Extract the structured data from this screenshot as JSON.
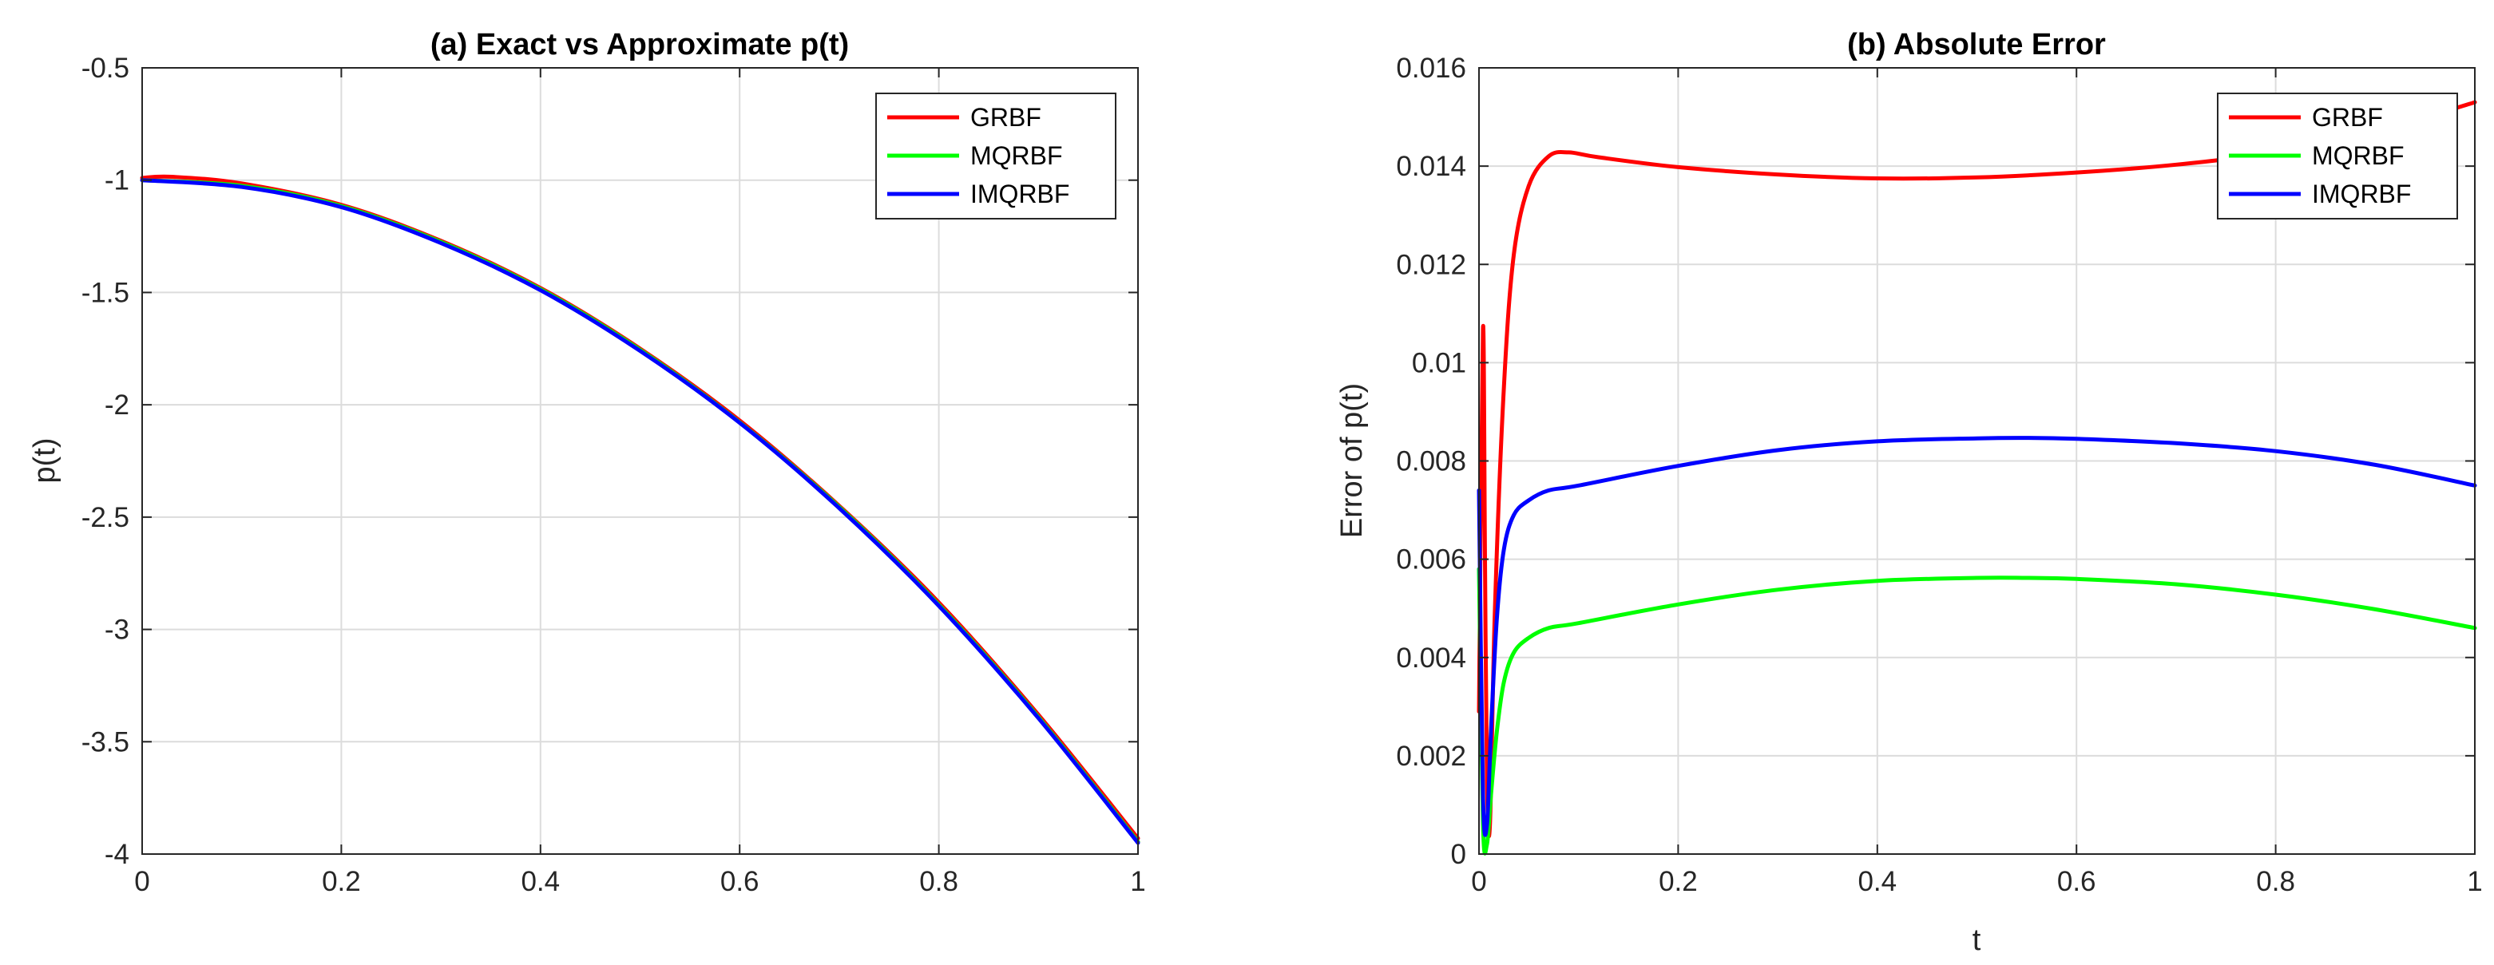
{
  "chart_data": [
    {
      "type": "line",
      "title": "(a) Exact vs Approximate p(t)",
      "xlabel": "",
      "ylabel": "p(t)",
      "xlim": [
        0,
        1
      ],
      "ylim": [
        -4,
        -0.5
      ],
      "xticks": [
        0,
        0.2,
        0.4,
        0.6,
        0.8,
        1
      ],
      "xtick_labels": [
        "0",
        "0.2",
        "0.4",
        "0.6",
        "0.8",
        "1"
      ],
      "yticks": [
        -4,
        -3.5,
        -3,
        -2.5,
        -2,
        -1.5,
        -1,
        -0.5
      ],
      "ytick_labels": [
        "-4",
        "-3.5",
        "-3",
        "-2.5",
        "-2",
        "-1.5",
        "-1",
        "-0.5"
      ],
      "grid": true,
      "legend_position": "top-right",
      "series": [
        {
          "name": "GRBF",
          "color": "#ff0000",
          "x": [
            0,
            0.03,
            0.1,
            0.2,
            0.3,
            0.4,
            0.5,
            0.6,
            0.7,
            0.8,
            0.9,
            1.0
          ],
          "y": [
            -0.99,
            -0.985,
            -1.015,
            -1.11,
            -1.27,
            -1.48,
            -1.75,
            -2.07,
            -2.45,
            -2.88,
            -3.38,
            -3.93
          ]
        },
        {
          "name": "MQRBF",
          "color": "#00ff00",
          "x": [
            0,
            0.1,
            0.2,
            0.3,
            0.4,
            0.5,
            0.6,
            0.7,
            0.8,
            0.9,
            1.0
          ],
          "y": [
            -1.0,
            -1.025,
            -1.115,
            -1.275,
            -1.485,
            -1.755,
            -2.078,
            -2.455,
            -2.89,
            -3.39,
            -3.945
          ]
        },
        {
          "name": "IMQRBF",
          "color": "#0000ff",
          "x": [
            0,
            0.1,
            0.2,
            0.3,
            0.4,
            0.5,
            0.6,
            0.7,
            0.8,
            0.9,
            1.0
          ],
          "y": [
            -1.0,
            -1.03,
            -1.12,
            -1.28,
            -1.49,
            -1.76,
            -2.08,
            -2.46,
            -2.895,
            -3.395,
            -3.95
          ]
        }
      ]
    },
    {
      "type": "line",
      "title": "(b) Absolute Error",
      "xlabel": "t",
      "ylabel": "Error of p(t)",
      "xlim": [
        0,
        1
      ],
      "ylim": [
        0,
        0.016
      ],
      "xticks": [
        0,
        0.2,
        0.4,
        0.6,
        0.8,
        1
      ],
      "xtick_labels": [
        "0",
        "0.2",
        "0.4",
        "0.6",
        "0.8",
        "1"
      ],
      "yticks": [
        0,
        0.002,
        0.004,
        0.006,
        0.008,
        0.01,
        0.012,
        0.014,
        0.016
      ],
      "ytick_labels": [
        "0",
        "0.002",
        "0.004",
        "0.006",
        "0.008",
        "0.01",
        "0.012",
        "0.014",
        "0.016"
      ],
      "grid": true,
      "legend_position": "top-right",
      "series": [
        {
          "name": "GRBF",
          "color": "#ff0000",
          "x": [
            0.0,
            0.004,
            0.006,
            0.008,
            0.011,
            0.016,
            0.025,
            0.035,
            0.05,
            0.07,
            0.09,
            0.12,
            0.2,
            0.3,
            0.4,
            0.5,
            0.6,
            0.7,
            0.8,
            0.9,
            1.0
          ],
          "y": [
            0.0029,
            0.0107,
            0.006,
            0.0015,
            0.0006,
            0.005,
            0.0095,
            0.0122,
            0.0136,
            0.0142,
            0.01428,
            0.01418,
            0.01398,
            0.01383,
            0.01375,
            0.01377,
            0.01387,
            0.01403,
            0.01428,
            0.0147,
            0.0153
          ]
        },
        {
          "name": "MQRBF",
          "color": "#00ff00",
          "x": [
            0.0,
            0.004,
            0.008,
            0.012,
            0.018,
            0.025,
            0.035,
            0.05,
            0.07,
            0.1,
            0.2,
            0.3,
            0.4,
            0.5,
            0.55,
            0.6,
            0.7,
            0.8,
            0.9,
            1.0
          ],
          "y": [
            0.0058,
            0.0006,
            0.0002,
            0.0012,
            0.0025,
            0.0035,
            0.0041,
            0.0044,
            0.0046,
            0.0047,
            0.00508,
            0.00538,
            0.00556,
            0.00562,
            0.00562,
            0.0056,
            0.00549,
            0.00528,
            0.00498,
            0.0046
          ]
        },
        {
          "name": "IMQRBF",
          "color": "#0000ff",
          "x": [
            0.0,
            0.004,
            0.008,
            0.012,
            0.018,
            0.025,
            0.035,
            0.05,
            0.07,
            0.1,
            0.2,
            0.3,
            0.4,
            0.5,
            0.55,
            0.6,
            0.7,
            0.8,
            0.9,
            1.0
          ],
          "y": [
            0.0074,
            0.0012,
            0.0006,
            0.0025,
            0.0048,
            0.0062,
            0.0069,
            0.0072,
            0.0074,
            0.0075,
            0.0079,
            0.00822,
            0.0084,
            0.00846,
            0.00847,
            0.00845,
            0.00836,
            0.0082,
            0.00792,
            0.0075
          ]
        }
      ]
    }
  ]
}
